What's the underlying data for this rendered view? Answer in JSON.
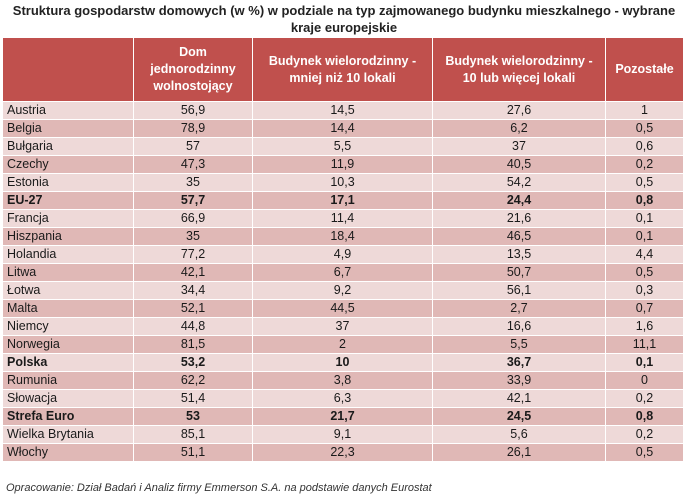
{
  "chart_data": {
    "type": "table",
    "title": "Struktura gospodarstw domowych (w %) w podziale na typ zajmowanego budynku mieszkalnego - wybrane kraje europejskie",
    "columns": [
      "",
      "Dom jednorodzinny wolnostojący",
      "Budynek wielorodzinny - mniej niż 10 lokali",
      "Budynek wielorodzinny - 10 lub więcej lokali",
      "Pozostałe"
    ],
    "rows": [
      {
        "name": "Austria",
        "values": [
          "56,9",
          "14,5",
          "27,6",
          "1"
        ],
        "bold": false
      },
      {
        "name": "Belgia",
        "values": [
          "78,9",
          "14,4",
          "6,2",
          "0,5"
        ],
        "bold": false
      },
      {
        "name": "Bułgaria",
        "values": [
          "57",
          "5,5",
          "37",
          "0,6"
        ],
        "bold": false
      },
      {
        "name": "Czechy",
        "values": [
          "47,3",
          "11,9",
          "40,5",
          "0,2"
        ],
        "bold": false
      },
      {
        "name": "Estonia",
        "values": [
          "35",
          "10,3",
          "54,2",
          "0,5"
        ],
        "bold": false
      },
      {
        "name": "EU-27",
        "values": [
          "57,7",
          "17,1",
          "24,4",
          "0,8"
        ],
        "bold": true
      },
      {
        "name": "Francja",
        "values": [
          "66,9",
          "11,4",
          "21,6",
          "0,1"
        ],
        "bold": false
      },
      {
        "name": "Hiszpania",
        "values": [
          "35",
          "18,4",
          "46,5",
          "0,1"
        ],
        "bold": false
      },
      {
        "name": "Holandia",
        "values": [
          "77,2",
          "4,9",
          "13,5",
          "4,4"
        ],
        "bold": false
      },
      {
        "name": "Litwa",
        "values": [
          "42,1",
          "6,7",
          "50,7",
          "0,5"
        ],
        "bold": false
      },
      {
        "name": "Łotwa",
        "values": [
          "34,4",
          "9,2",
          "56,1",
          "0,3"
        ],
        "bold": false
      },
      {
        "name": "Malta",
        "values": [
          "52,1",
          "44,5",
          "2,7",
          "0,7"
        ],
        "bold": false
      },
      {
        "name": "Niemcy",
        "values": [
          "44,8",
          "37",
          "16,6",
          "1,6"
        ],
        "bold": false
      },
      {
        "name": "Norwegia",
        "values": [
          "81,5",
          "2",
          "5,5",
          "11,1"
        ],
        "bold": false
      },
      {
        "name": "Polska",
        "values": [
          "53,2",
          "10",
          "36,7",
          "0,1"
        ],
        "bold": true
      },
      {
        "name": "Rumunia",
        "values": [
          "62,2",
          "3,8",
          "33,9",
          "0"
        ],
        "bold": false
      },
      {
        "name": "Słowacja",
        "values": [
          "51,4",
          "6,3",
          "42,1",
          "0,2"
        ],
        "bold": false
      },
      {
        "name": "Strefa Euro",
        "values": [
          "53",
          "21,7",
          "24,5",
          "0,8"
        ],
        "bold": true
      },
      {
        "name": "Wielka Brytania",
        "values": [
          "85,1",
          "9,1",
          "5,6",
          "0,2"
        ],
        "bold": false
      },
      {
        "name": "Włochy",
        "values": [
          "51,1",
          "22,3",
          "26,1",
          "0,5"
        ],
        "bold": false
      }
    ],
    "source": "Opracowanie: Dział Badań i Analiz firmy Emmerson S.A. na podstawie danych Eurostat"
  },
  "colors": {
    "header": "#c0504d",
    "row_light": "#eed9d8",
    "row_dark": "#e0b8b6"
  }
}
